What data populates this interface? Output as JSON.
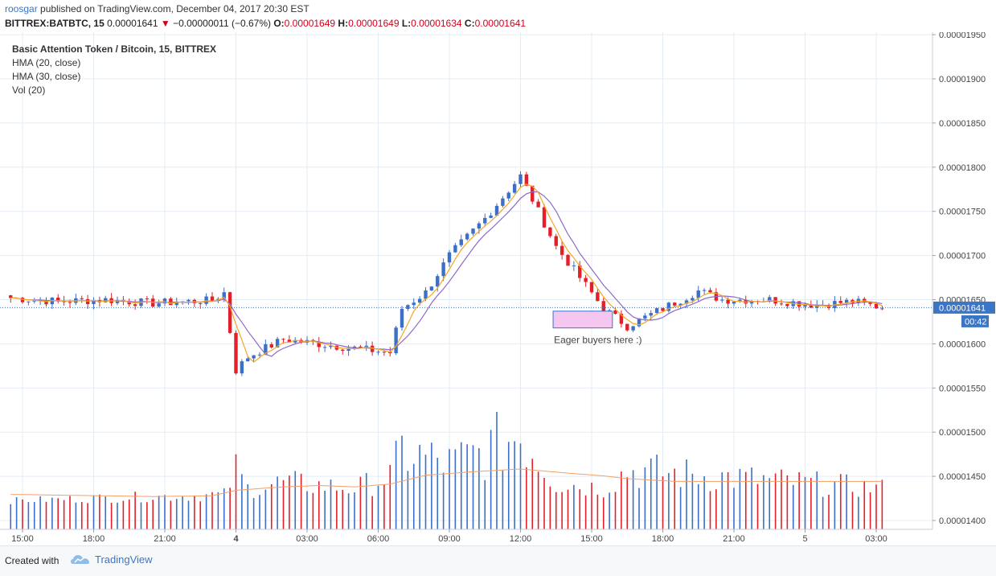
{
  "header": {
    "author": "roosgar",
    "published_text": "published on TradingView.com, December 04, 2017 20:30 EST",
    "symbol": "BITTREX:BATBTC, 15",
    "last": "0.00001641",
    "change": "−0.00000011 (−0.67%)",
    "o_label": "O:",
    "o_value": "0.00001649",
    "h_label": "H:",
    "h_value": "0.00001649",
    "l_label": "L:",
    "l_value": "0.00001634",
    "c_label": "C:",
    "c_value": "0.00001641",
    "down_arrow": "▼"
  },
  "legend": {
    "title": "Basic Attention Token / Bitcoin, 15, BITTREX",
    "items": [
      "HMA (20, close)",
      "HMA (30, close)",
      "Vol (20)"
    ]
  },
  "colors": {
    "up": "#3b6fc8",
    "down": "#e3202a",
    "hma20": "#f5a623",
    "hma30": "#8e6ac8",
    "vol_ma": "#f4a06a",
    "grid": "#e3ecf5",
    "price_line": "#3b76c5",
    "box_fill": "#f4c6f0",
    "box_stroke": "#3b76c5"
  },
  "chart_data": {
    "type": "candlestick",
    "title": "Basic Attention Token / Bitcoin, 15, BITTREX",
    "ylim": [
      1.39e-05,
      1.955e-05
    ],
    "y_ticks": [
      "0.00001400",
      "0.00001450",
      "0.00001500",
      "0.00001550",
      "0.00001600",
      "0.00001650",
      "0.00001700",
      "0.00001750",
      "0.00001800",
      "0.00001850",
      "0.00001900",
      "0.00001950"
    ],
    "x_ticks": [
      "15:00",
      "18:00",
      "21:00",
      "4",
      "03:00",
      "06:00",
      "09:00",
      "12:00",
      "15:00",
      "18:00",
      "21:00",
      "5",
      "03:00"
    ],
    "x_tick_bold": [
      false,
      false,
      false,
      true,
      false,
      false,
      false,
      false,
      false,
      false,
      false,
      false,
      false
    ],
    "current_price_label": "0.00001641",
    "countdown_label": "00:42",
    "annotation": "Eager buyers here :)",
    "annotation_box": {
      "t_start": 91.5,
      "t_end": 101.5,
      "price_high": 1.637e-05,
      "price_low": 1.618e-05
    },
    "bars_per_hour": 4,
    "first_bar_hour": 14.5,
    "close_path": [
      [
        0,
        1652
      ],
      [
        8,
        1648
      ],
      [
        16,
        1650
      ],
      [
        24,
        1646
      ],
      [
        30,
        1648
      ],
      [
        34,
        1649
      ],
      [
        36,
        1658
      ],
      [
        38,
        1570
      ],
      [
        40,
        1585
      ],
      [
        42,
        1592
      ],
      [
        46,
        1605
      ],
      [
        52,
        1600
      ],
      [
        58,
        1595
      ],
      [
        64,
        1590
      ],
      [
        66,
        1640
      ],
      [
        70,
        1658
      ],
      [
        74,
        1700
      ],
      [
        80,
        1742
      ],
      [
        86,
        1790
      ],
      [
        92,
        1710
      ],
      [
        100,
        1640
      ],
      [
        104,
        1620
      ],
      [
        110,
        1640
      ],
      [
        116,
        1660
      ],
      [
        120,
        1650
      ],
      [
        128,
        1650
      ],
      [
        136,
        1644
      ],
      [
        142,
        1648
      ],
      [
        147,
        1641
      ]
    ],
    "vol_path": [
      [
        0,
        1
      ],
      [
        36,
        2
      ],
      [
        38,
        6
      ],
      [
        40,
        3
      ],
      [
        46,
        4
      ],
      [
        58,
        3
      ],
      [
        64,
        5
      ],
      [
        66,
        9
      ],
      [
        74,
        7
      ],
      [
        80,
        9
      ],
      [
        86,
        12
      ],
      [
        92,
        4
      ],
      [
        100,
        3
      ],
      [
        104,
        6
      ],
      [
        147,
        3
      ]
    ],
    "vol_ma_path": [
      [
        0,
        1.8
      ],
      [
        24,
        1.5
      ],
      [
        34,
        1.6
      ],
      [
        38,
        2.4
      ],
      [
        46,
        2.9
      ],
      [
        52,
        3.1
      ],
      [
        58,
        2.9
      ],
      [
        64,
        3.3
      ],
      [
        70,
        4.6
      ],
      [
        78,
        5.1
      ],
      [
        86,
        5.5
      ],
      [
        94,
        4.9
      ],
      [
        100,
        4.5
      ],
      [
        104,
        4.1
      ],
      [
        112,
        3.7
      ]
    ]
  },
  "footer": {
    "created_with": "Created with",
    "brand": "TradingView"
  }
}
